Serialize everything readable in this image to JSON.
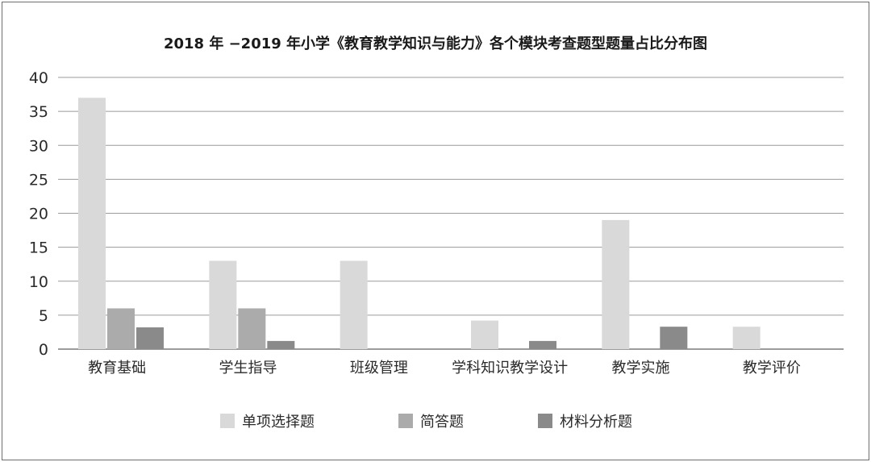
{
  "chart_data": {
    "type": "bar",
    "title": "2018 年 −2019 年小学《教育教学知识与能力》各个模块考查题型题量占比分布图",
    "xlabel": "",
    "ylabel": "",
    "ylim": [
      0,
      40
    ],
    "yticks": [
      0,
      5,
      10,
      15,
      20,
      25,
      30,
      35,
      40
    ],
    "grid": true,
    "legend_position": "bottom",
    "categories": [
      "教育基础",
      "学生指导",
      "班级管理",
      "学科知识教学设计",
      "教学实施",
      "教学评价"
    ],
    "series": [
      {
        "name": "单项选择题",
        "color": "#d9d9d9",
        "values": [
          37,
          13,
          13,
          4.2,
          19,
          3.3
        ]
      },
      {
        "name": "简答题",
        "color": "#ababab",
        "values": [
          6,
          6,
          0,
          0,
          0,
          0
        ]
      },
      {
        "name": "材料分析题",
        "color": "#8a8a8a",
        "values": [
          3.2,
          1.2,
          0,
          1.2,
          3.3,
          0
        ]
      }
    ]
  }
}
